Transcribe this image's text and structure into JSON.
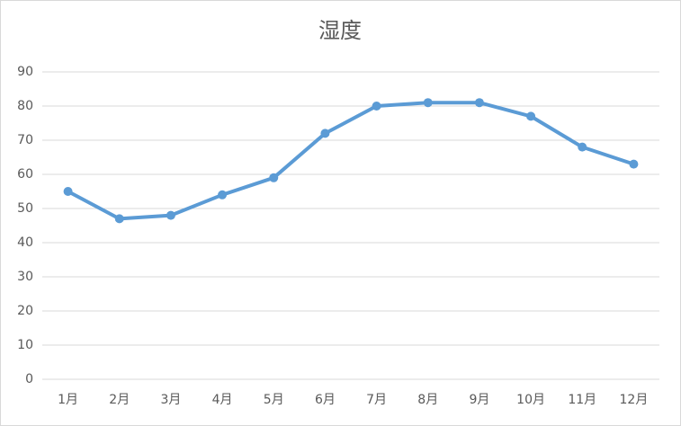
{
  "chart_data": {
    "type": "line",
    "title": "湿度",
    "categories": [
      "1月",
      "2月",
      "3月",
      "4月",
      "5月",
      "6月",
      "7月",
      "8月",
      "9月",
      "10月",
      "11月",
      "12月"
    ],
    "values": [
      55,
      47,
      48,
      54,
      59,
      72,
      80,
      81,
      81,
      77,
      68,
      63
    ],
    "color": "#5b9bd5",
    "ylim": [
      0,
      90
    ],
    "yticks": [
      0,
      10,
      20,
      30,
      40,
      50,
      60,
      70,
      80,
      90
    ],
    "grid": true
  }
}
